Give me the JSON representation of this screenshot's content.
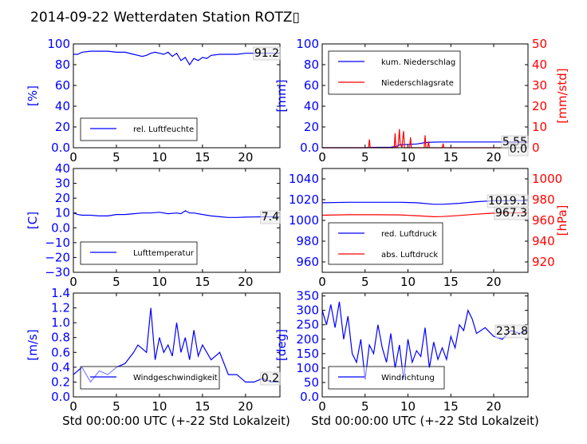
{
  "title": "2014-09-22 Wetterdaten Station ROTZ▯",
  "xlabel": "Std 00:00:00 UTC (+-22 Std Lokalzeit)",
  "colors": {
    "left_axis": "#0000ff",
    "right_axis": "#ff0000",
    "series_blue": "#0000ff",
    "series_red": "#ff0000"
  },
  "chart_data": [
    {
      "type": "line",
      "ylabel": "[%]",
      "xlim": [
        0,
        24
      ],
      "ylim": [
        0,
        100
      ],
      "xticks": [
        0,
        5,
        10,
        15,
        20
      ],
      "yticks": [
        0,
        20,
        40,
        60,
        80,
        100
      ],
      "legend_position": "lower-left",
      "annotations": [
        "91.2"
      ],
      "series": [
        {
          "name": "rel. Luftfeuchte",
          "color": "#0000ff",
          "x": [
            0,
            0.5,
            1,
            2,
            3,
            4,
            5,
            6,
            7,
            7.5,
            8,
            8.5,
            9,
            9.5,
            10,
            10.5,
            11,
            11.5,
            12,
            12.5,
            13,
            13.5,
            14,
            14.5,
            15,
            15.5,
            16,
            17,
            18,
            19,
            20,
            21,
            22,
            23,
            24
          ],
          "values": [
            90,
            90,
            92,
            93,
            93,
            93,
            92,
            92,
            90,
            89,
            88,
            89,
            91,
            92,
            91,
            90,
            92,
            88,
            91,
            84,
            87,
            80,
            86,
            84,
            87,
            86,
            89,
            90,
            90,
            90,
            91,
            91,
            91,
            91,
            91
          ]
        }
      ]
    },
    {
      "type": "line",
      "ylabel": "[mm]",
      "ylabel_right": "[mm/std]",
      "xlim": [
        0,
        24
      ],
      "ylim": [
        0,
        100
      ],
      "ylim_right": [
        0,
        50
      ],
      "xticks": [
        0,
        5,
        10,
        15,
        20
      ],
      "yticks": [
        0,
        20,
        40,
        60,
        80,
        100
      ],
      "yticks_right": [
        0,
        10,
        20,
        30,
        40,
        50
      ],
      "legend_position": "upper-left",
      "annotations": [
        "5.55",
        "0.0"
      ],
      "series": [
        {
          "name": "kum. Niederschlag",
          "color": "#0000ff",
          "axis": "left",
          "x": [
            0,
            5,
            5.5,
            8,
            8.8,
            9,
            10,
            11,
            11.5,
            12,
            13,
            14,
            15,
            20,
            24
          ],
          "values": [
            0,
            0,
            0.3,
            0.5,
            1.5,
            2.8,
            3.2,
            3.6,
            4.2,
            5,
            5.4,
            5.55,
            5.55,
            5.55,
            5.55
          ]
        },
        {
          "name": "Niederschlagsrate",
          "color": "#ff0000",
          "axis": "right",
          "x": [
            0,
            5.4,
            5.5,
            5.6,
            8.4,
            8.5,
            8.6,
            8.8,
            8.9,
            9.0,
            9.1,
            9.3,
            9.4,
            9.5,
            9.6,
            10.2,
            10.3,
            10.4,
            11.9,
            12.0,
            12.1,
            12.3,
            12.4,
            12.5,
            14.0,
            14.1,
            14.2,
            24
          ],
          "values": [
            0,
            0,
            4,
            0,
            0,
            7,
            0,
            0,
            3,
            9,
            2,
            0,
            5,
            8,
            0,
            0,
            5,
            0,
            0,
            6,
            0,
            0,
            3,
            0,
            0,
            2,
            0,
            0
          ]
        }
      ]
    },
    {
      "type": "line",
      "ylabel": "[C]",
      "xlim": [
        0,
        24
      ],
      "ylim": [
        -30,
        40
      ],
      "xticks": [
        0,
        5,
        10,
        15,
        20
      ],
      "yticks": [
        -30,
        -20,
        -10,
        0,
        10,
        20,
        30,
        40
      ],
      "legend_position": "lower-left",
      "annotations": [
        "7.4"
      ],
      "series": [
        {
          "name": "Lufttemperatur",
          "color": "#0000ff",
          "x": [
            0,
            0.5,
            1,
            2,
            3,
            4,
            5,
            6,
            7,
            8,
            9,
            10,
            11,
            12,
            12.5,
            13,
            13.5,
            14,
            15,
            16,
            17,
            18,
            19,
            20,
            21,
            22,
            23,
            24
          ],
          "values": [
            10,
            9,
            8.5,
            8.5,
            8,
            8,
            9,
            9,
            9.5,
            10,
            10,
            10.5,
            9.5,
            10,
            9.5,
            11.5,
            10,
            10,
            9,
            8,
            7.5,
            7,
            7,
            7.2,
            7.3,
            7.4,
            7.4,
            7.4
          ]
        }
      ]
    },
    {
      "type": "line",
      "ylabel_right": "[hPa]",
      "xlim": [
        0,
        24
      ],
      "ylim": [
        950,
        1050
      ],
      "ylim_right": [
        910,
        1010
      ],
      "xticks": [
        0,
        5,
        10,
        15,
        20
      ],
      "yticks": [
        960,
        980,
        1000,
        1020,
        1040
      ],
      "yticks_right": [
        920,
        940,
        960,
        980,
        1000
      ],
      "legend_position": "lower-left",
      "annotations": [
        "1019.1",
        "967.3"
      ],
      "series": [
        {
          "name": "red. Luftdruck",
          "color": "#0000ff",
          "axis": "left",
          "x": [
            0,
            3,
            6,
            9,
            11,
            13,
            14,
            16,
            18,
            20,
            22,
            24
          ],
          "values": [
            1017,
            1017.5,
            1017.5,
            1017.5,
            1017,
            1015.5,
            1015.5,
            1016.5,
            1018,
            1019,
            1019.1,
            1019.1
          ]
        },
        {
          "name": "abs. Luftdruck",
          "color": "#ff0000",
          "axis": "right",
          "x": [
            0,
            3,
            6,
            9,
            11,
            13,
            14,
            16,
            18,
            20,
            22,
            24
          ],
          "values": [
            965,
            965.5,
            965.5,
            965.3,
            964.5,
            963.5,
            963.7,
            964.8,
            966,
            967,
            967.3,
            967.3
          ]
        }
      ]
    },
    {
      "type": "line",
      "ylabel": "[m/s]",
      "xlim": [
        0,
        24
      ],
      "ylim": [
        0,
        1.4
      ],
      "xticks": [
        0,
        5,
        10,
        15,
        20
      ],
      "yticks": [
        0.0,
        0.2,
        0.4,
        0.6,
        0.8,
        1.0,
        1.2,
        1.4
      ],
      "legend_position": "lower-left",
      "annotations": [
        "0.2"
      ],
      "series": [
        {
          "name": "Windgeschwindigkeit",
          "color": "#0000ff",
          "x": [
            0,
            1,
            2,
            3,
            4,
            5,
            6,
            7,
            7.5,
            8,
            8.5,
            9,
            9.5,
            10,
            10.5,
            11,
            11.5,
            12,
            12.5,
            13,
            13.5,
            14,
            14.5,
            15,
            16,
            17,
            18,
            19,
            20,
            21,
            22,
            23,
            24
          ],
          "values": [
            0.3,
            0.4,
            0.2,
            0.35,
            0.3,
            0.4,
            0.45,
            0.6,
            0.7,
            0.65,
            0.6,
            1.2,
            0.5,
            0.8,
            0.6,
            0.7,
            0.55,
            1.0,
            0.6,
            0.8,
            0.5,
            0.9,
            0.55,
            0.7,
            0.5,
            0.6,
            0.3,
            0.3,
            0.2,
            0.2,
            0.25,
            0.2,
            0.2
          ]
        }
      ]
    },
    {
      "type": "line",
      "ylabel": "[deg]",
      "xlim": [
        0,
        24
      ],
      "ylim": [
        0,
        360
      ],
      "xticks": [
        0,
        5,
        10,
        15,
        20
      ],
      "yticks": [
        0,
        50,
        100,
        150,
        200,
        250,
        300,
        350
      ],
      "legend_position": "lower-left",
      "annotations": [
        "231.8"
      ],
      "series": [
        {
          "name": "Windrichtung",
          "color": "#0000ff",
          "x": [
            0,
            0.5,
            1,
            1.5,
            2,
            2.5,
            3,
            3.5,
            4,
            4.5,
            5,
            5.5,
            6,
            6.5,
            7,
            7.5,
            8,
            8.5,
            9,
            9.5,
            10,
            10.5,
            11,
            11.5,
            12,
            12.5,
            13,
            13.5,
            14,
            14.5,
            15,
            15.5,
            16,
            16.5,
            17,
            17.5,
            18,
            19,
            20,
            21,
            22,
            23,
            24
          ],
          "values": [
            300,
            250,
            320,
            240,
            330,
            200,
            280,
            150,
            120,
            200,
            60,
            180,
            150,
            250,
            170,
            120,
            220,
            100,
            180,
            60,
            200,
            120,
            160,
            140,
            240,
            100,
            190,
            130,
            170,
            130,
            210,
            170,
            250,
            230,
            300,
            270,
            220,
            240,
            210,
            200,
            230,
            220,
            231.8
          ]
        }
      ]
    }
  ]
}
